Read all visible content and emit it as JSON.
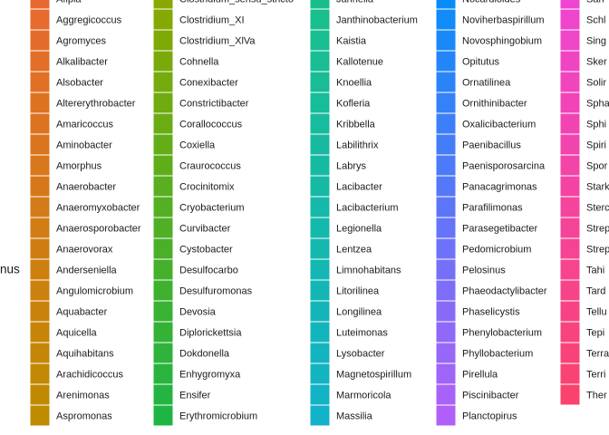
{
  "legend": {
    "title": "nus",
    "columns": [
      {
        "colors": [
          "#e8692f",
          "#bf8b00"
        ],
        "entries": [
          "Afipia",
          "Aggregicoccus",
          "Agromyces",
          "Alkalibacter",
          "Alsobacter",
          "Altererythrobacter",
          "Amaricoccus",
          "Aminobacter",
          "Amorphus",
          "Anaerobacter",
          "Anaeromyxobacter",
          "Anaerosporobacter",
          "Anaerovorax",
          "Anderseniella",
          "Angulomicrobium",
          "Aquabacter",
          "Aquicella",
          "Aquihabitans",
          "Arachidicoccus",
          "Arenimonas",
          "Aspromonas"
        ]
      },
      {
        "colors": [
          "#8aa800",
          "#1fb544"
        ],
        "entries": [
          "Clostridium_sensu_stricto",
          "Clostridium_XI",
          "Clostridium_XlVa",
          "Cohnella",
          "Conexibacter",
          "Constrictibacter",
          "Corallococcus",
          "Coxiella",
          "Craurococcus",
          "Crocinitomix",
          "Cryobacterium",
          "Curvibacter",
          "Cystobacter",
          "Desulfocarbo",
          "Desulfuromonas",
          "Devosia",
          "Diplorickettsia",
          "Dokdonella",
          "Enhygromyxa",
          "Ensifer",
          "Erythromicrobium"
        ]
      },
      {
        "colors": [
          "#19bf8a",
          "#12b2c8"
        ],
        "entries": [
          "Jahnella",
          "Janthinobacterium",
          "Kaistia",
          "Kallotenue",
          "Knoellia",
          "Kofleria",
          "Kribbella",
          "Labilithrix",
          "Labrys",
          "Lacibacter",
          "Lacibacterium",
          "Legionella",
          "Lentzea",
          "Limnohabitans",
          "Litorilinea",
          "Longilinea",
          "Luteimonas",
          "Lysobacter",
          "Magnetospirillum",
          "Marmoricola",
          "Massilia"
        ]
      },
      {
        "colors": [
          "#0a8cf8",
          "#b060f8"
        ],
        "entries": [
          "Nocardioides",
          "Noviherbaspirillum",
          "Novosphingobium",
          "Opitutus",
          "Ornatilinea",
          "Ornithinibacter",
          "Oxalicibacterium",
          "Paenibacillus",
          "Paenisporosarcina",
          "Panacagrimonas",
          "Parafilimonas",
          "Parasegetibacter",
          "Pedomicrobium",
          "Pelosinus",
          "Phaeodactylibacter",
          "Phaselicystis",
          "Phenylobacterium",
          "Phyllobacterium",
          "Pirellula",
          "Piscinibacter",
          "Planctopirus"
        ]
      },
      {
        "colors": [
          "#ee45d2",
          "#f9436e"
        ],
        "entries": [
          "San",
          "Schl",
          "Sing",
          "Sker",
          "Solir",
          "Spha",
          "Sphi",
          "Spiri",
          "Spor",
          "Stark",
          "Sterc",
          "Strep",
          "Strep",
          "Tahi",
          "Tard",
          "Tellu",
          "Tepi",
          "Terra",
          "Terri",
          "Ther"
        ]
      }
    ]
  }
}
